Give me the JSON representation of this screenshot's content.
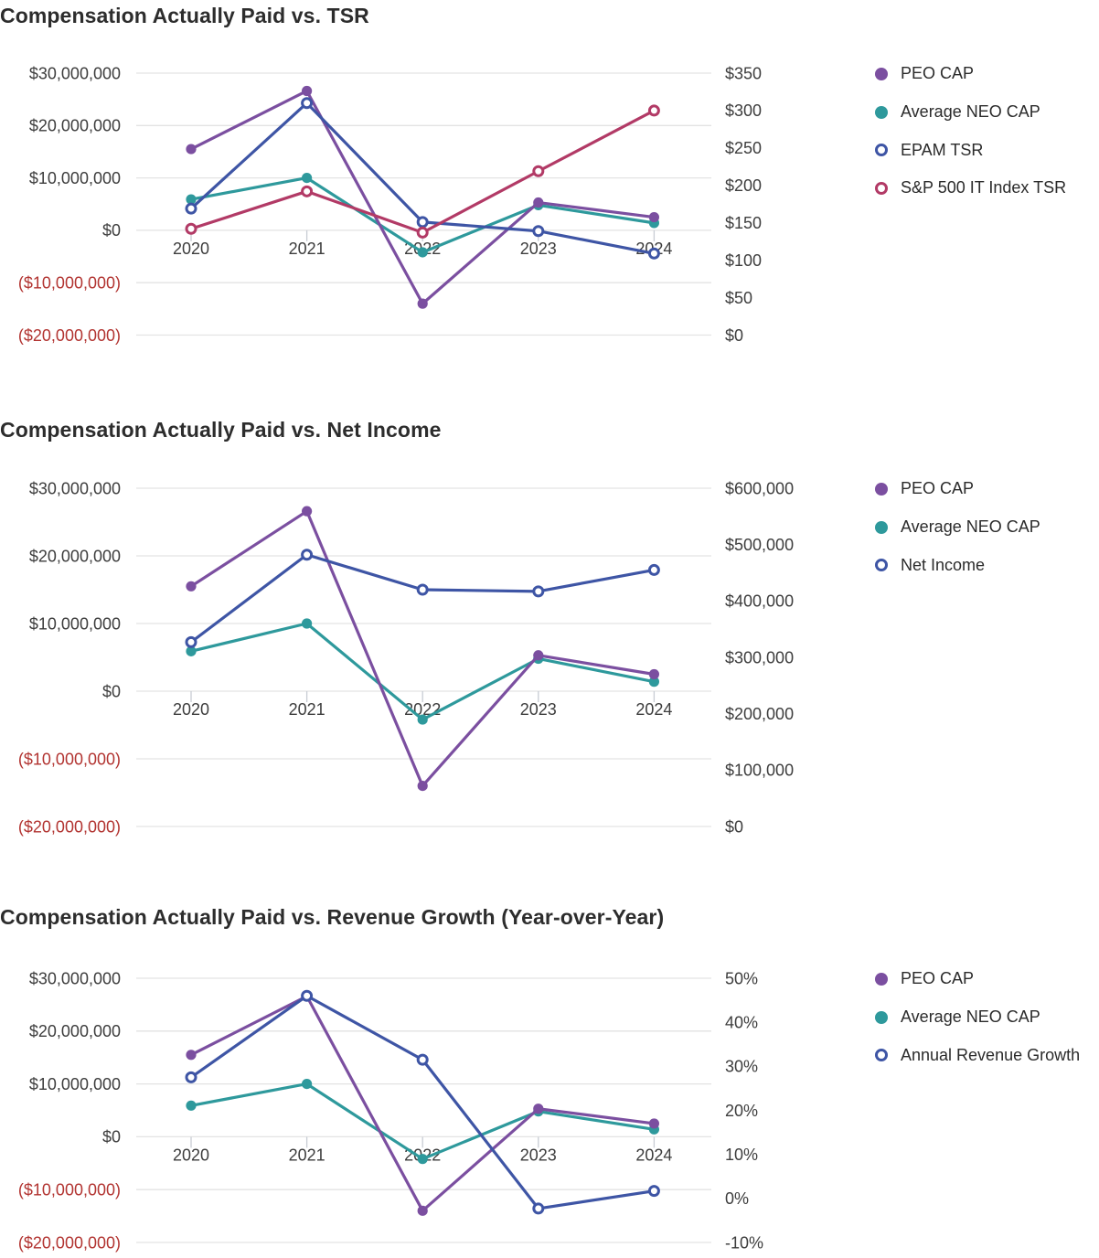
{
  "palette": {
    "purple": "#7b4fa0",
    "teal": "#2e999c",
    "indigo": "#3e55a5",
    "crimson": "#b23a66",
    "grid": "#e3e3e3",
    "tick_text": "#3d3d3d",
    "negative_tick_text": "#b23431",
    "title_text": "#2d2d2d",
    "x_tick_mark": "#c8cdd4"
  },
  "chart_data": [
    {
      "type": "line",
      "title": "Compensation Actually Paid vs. TSR",
      "x_categories": [
        "2020",
        "2021",
        "2022",
        "2023",
        "2024"
      ],
      "grid": true,
      "legend_position": "right",
      "left_axis": {
        "tick_labels": [
          "$30,000,000",
          "$20,000,000",
          "$10,000,000",
          "$0",
          "($10,000,000)",
          "($20,000,000)"
        ],
        "tick_values": [
          30000000,
          20000000,
          10000000,
          0,
          -10000000,
          -20000000
        ],
        "range": [
          -20000000,
          30000000
        ]
      },
      "right_axis": {
        "tick_labels": [
          "$350",
          "$300",
          "$250",
          "$200",
          "$150",
          "$100",
          "$50",
          "$0"
        ],
        "range": [
          0,
          350
        ]
      },
      "series": [
        {
          "name": "PEO CAP",
          "axis": "left",
          "color": "purple",
          "marker": "filled",
          "values": [
            15500000,
            26600000,
            -14000000,
            5300000,
            2500000
          ]
        },
        {
          "name": "Average NEO CAP",
          "axis": "left",
          "color": "teal",
          "marker": "filled",
          "values": [
            5900000,
            10000000,
            -4200000,
            4800000,
            1400000
          ]
        },
        {
          "name": "EPAM TSR",
          "axis": "right",
          "color": "indigo",
          "marker": "open",
          "values": [
            169,
            310,
            151,
            139,
            109
          ]
        },
        {
          "name": "S&P 500 IT Index TSR",
          "axis": "right",
          "color": "crimson",
          "marker": "open",
          "values": [
            142,
            192,
            137,
            219,
            300
          ]
        }
      ]
    },
    {
      "type": "line",
      "title": "Compensation Actually Paid vs. Net Income",
      "x_categories": [
        "2020",
        "2021",
        "2022",
        "2023",
        "2024"
      ],
      "grid": true,
      "legend_position": "right",
      "left_axis": {
        "tick_labels": [
          "$30,000,000",
          "$20,000,000",
          "$10,000,000",
          "$0",
          "($10,000,000)",
          "($20,000,000)"
        ],
        "tick_values": [
          30000000,
          20000000,
          10000000,
          0,
          -10000000,
          -20000000
        ],
        "range": [
          -20000000,
          30000000
        ]
      },
      "right_axis": {
        "tick_labels": [
          "$600,000",
          "$500,000",
          "$400,000",
          "$300,000",
          "$200,000",
          "$100,000",
          "$0"
        ],
        "range": [
          0,
          600000
        ]
      },
      "series": [
        {
          "name": "PEO CAP",
          "axis": "left",
          "color": "purple",
          "marker": "filled",
          "values": [
            15500000,
            26600000,
            -14000000,
            5300000,
            2500000
          ]
        },
        {
          "name": "Average NEO CAP",
          "axis": "left",
          "color": "teal",
          "marker": "filled",
          "values": [
            5900000,
            10000000,
            -4200000,
            4800000,
            1400000
          ]
        },
        {
          "name": "Net Income",
          "axis": "right",
          "color": "indigo",
          "marker": "open",
          "values": [
            327000,
            482000,
            420000,
            417000,
            455000
          ]
        }
      ]
    },
    {
      "type": "line",
      "title": "Compensation Actually Paid vs. Revenue Growth (Year-over-Year)",
      "x_categories": [
        "2020",
        "2021",
        "2022",
        "2023",
        "2024"
      ],
      "grid": true,
      "legend_position": "right",
      "left_axis": {
        "tick_labels": [
          "$30,000,000",
          "$20,000,000",
          "$10,000,000",
          "$0",
          "($10,000,000)",
          "($20,000,000)"
        ],
        "tick_values": [
          30000000,
          20000000,
          10000000,
          0,
          -10000000,
          -20000000
        ],
        "range": [
          -20000000,
          30000000
        ]
      },
      "right_axis": {
        "tick_labels": [
          "50%",
          "40%",
          "30%",
          "20%",
          "10%",
          "0%",
          "-10%"
        ],
        "range": [
          -10,
          50
        ]
      },
      "series": [
        {
          "name": "PEO CAP",
          "axis": "left",
          "color": "purple",
          "marker": "filled",
          "values": [
            15500000,
            26600000,
            -14000000,
            5300000,
            2500000
          ]
        },
        {
          "name": "Average NEO CAP",
          "axis": "left",
          "color": "teal",
          "marker": "filled",
          "values": [
            5900000,
            10000000,
            -4200000,
            4800000,
            1400000
          ]
        },
        {
          "name": "Annual Revenue Growth",
          "axis": "right",
          "color": "indigo",
          "marker": "open",
          "values": [
            27.5,
            46,
            31.5,
            -2.3,
            1.7
          ]
        }
      ]
    }
  ]
}
